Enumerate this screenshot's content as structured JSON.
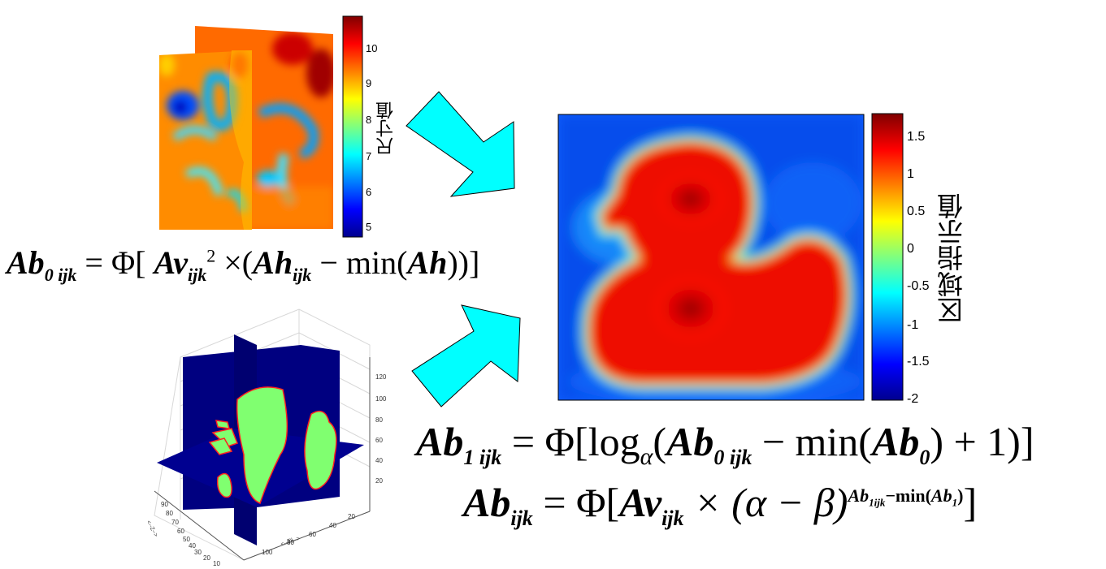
{
  "panel_top_left": {
    "colorbar_label": "尺寸值",
    "colorbar_ticks": [
      "10",
      "9",
      "8",
      "7",
      "6",
      "5"
    ],
    "formula": {
      "lhs": "Ab",
      "lhs_sub": "0 ijk",
      "rhs_prefix": "= Φ[",
      "term1": "Av",
      "term1_sub": "ijk",
      "term1_sup": "2",
      "op": "×(",
      "term2": "Ah",
      "term2_sub": "ijk",
      "minus": "− min(",
      "term3": "Ah",
      "close": "))]"
    }
  },
  "panel_bottom_left": {
    "z_ticks": [
      "120",
      "100",
      "80",
      "60",
      "40",
      "20"
    ],
    "left_ticks": [
      "90",
      "80",
      "70",
      "60",
      "50",
      "40",
      "30",
      "20",
      "10"
    ],
    "bottom_ticks": [
      "100",
      "80",
      "60",
      "40",
      "20"
    ],
    "right_ticks": [
      "20",
      "40",
      "60",
      "80",
      "100",
      "120"
    ],
    "left_axis_label": "<--Z-->",
    "bottom_axis_label": "<--列-->"
  },
  "panel_right": {
    "colorbar_label": "区域指示值",
    "colorbar_ticks": [
      "1.5",
      "1",
      "0.5",
      "0",
      "-0.5",
      "-1",
      "-1.5",
      "-2"
    ],
    "formula1": {
      "lhs": "Ab",
      "lhs_sub": "1 ijk",
      "rhs": "= Φ[log",
      "log_base": "α",
      "open": "(",
      "term1": "Ab",
      "term1_sub": "0 ijk",
      "minus": "− min(",
      "term2": "Ab",
      "term2_sub": "0",
      "close": ") + 1)]"
    },
    "formula2": {
      "lhs": "Ab",
      "lhs_sub": "ijk",
      "rhs": "= Φ[",
      "term1": "Av",
      "term1_sub": "ijk",
      "op": "× (α − β)",
      "exp_term": "Ab",
      "exp_sub": "1ijk",
      "exp_minus": "−min(",
      "exp_term2": "Ab",
      "exp_sub2": "1",
      "exp_close": ")",
      "close": "]"
    }
  },
  "colors": {
    "arrow": "#00ffff",
    "background": "#ffffff"
  }
}
